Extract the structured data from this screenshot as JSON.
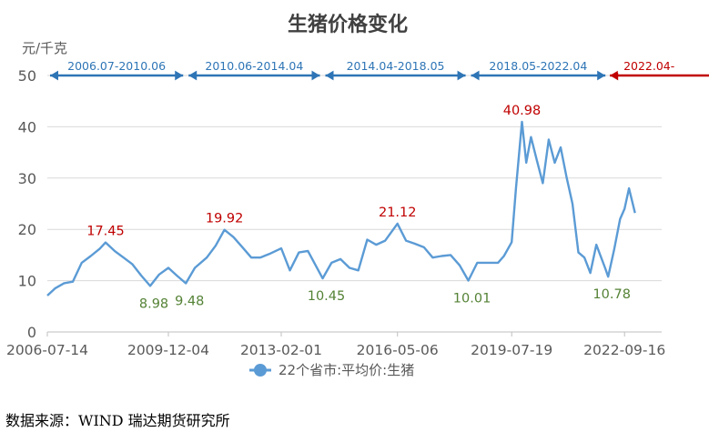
{
  "chart_data": {
    "type": "line",
    "title": "生猪价格变化",
    "ylabel": "元/千克",
    "ylim": [
      0,
      50
    ],
    "yticks": [
      "0",
      "10",
      "20",
      "30",
      "40",
      "50"
    ],
    "xlim": [
      "2006-07-14",
      "2023-10-01"
    ],
    "xticks": [
      "2006-07-14",
      "2009-12-04",
      "2013-02-01",
      "2016-05-06",
      "2019-07-19",
      "2022-09-16"
    ],
    "grid": true,
    "legend_position": "bottom",
    "series": [
      {
        "name": "22个省市:平均价:生猪",
        "color": "#5b9bd5",
        "points": [
          [
            "2006-07-14",
            7.1
          ],
          [
            "2006-10-01",
            8.5
          ],
          [
            "2007-01-01",
            9.5
          ],
          [
            "2007-04-01",
            9.8
          ],
          [
            "2007-07-01",
            13.5
          ],
          [
            "2007-10-01",
            14.8
          ],
          [
            "2008-01-01",
            16.2
          ],
          [
            "2008-03-01",
            17.45
          ],
          [
            "2008-06-01",
            15.8
          ],
          [
            "2008-09-01",
            14.5
          ],
          [
            "2008-12-01",
            13.2
          ],
          [
            "2009-03-01",
            11.0
          ],
          [
            "2009-06-01",
            8.98
          ],
          [
            "2009-09-01",
            11.2
          ],
          [
            "2009-12-04",
            12.5
          ],
          [
            "2010-03-01",
            11.0
          ],
          [
            "2010-06-01",
            9.48
          ],
          [
            "2010-09-01",
            12.5
          ],
          [
            "2011-01-01",
            14.5
          ],
          [
            "2011-04-01",
            16.8
          ],
          [
            "2011-07-01",
            19.92
          ],
          [
            "2011-10-01",
            18.5
          ],
          [
            "2012-01-01",
            16.5
          ],
          [
            "2012-04-01",
            14.5
          ],
          [
            "2012-07-01",
            14.5
          ],
          [
            "2012-10-01",
            15.2
          ],
          [
            "2013-02-01",
            16.3
          ],
          [
            "2013-05-01",
            12.0
          ],
          [
            "2013-08-01",
            15.5
          ],
          [
            "2013-11-01",
            15.8
          ],
          [
            "2014-04-01",
            10.45
          ],
          [
            "2014-07-01",
            13.5
          ],
          [
            "2014-10-01",
            14.2
          ],
          [
            "2015-01-01",
            12.5
          ],
          [
            "2015-04-01",
            12.0
          ],
          [
            "2015-07-01",
            18.0
          ],
          [
            "2015-10-01",
            17.0
          ],
          [
            "2016-01-01",
            17.8
          ],
          [
            "2016-05-06",
            21.12
          ],
          [
            "2016-08-01",
            17.8
          ],
          [
            "2016-11-01",
            17.2
          ],
          [
            "2017-02-01",
            16.5
          ],
          [
            "2017-05-01",
            14.5
          ],
          [
            "2017-08-01",
            14.8
          ],
          [
            "2017-11-01",
            15.0
          ],
          [
            "2018-02-01",
            13.0
          ],
          [
            "2018-05-01",
            10.01
          ],
          [
            "2018-08-01",
            13.5
          ],
          [
            "2018-11-01",
            13.5
          ],
          [
            "2019-03-01",
            13.5
          ],
          [
            "2019-05-01",
            14.8
          ],
          [
            "2019-07-19",
            17.5
          ],
          [
            "2019-09-01",
            28.0
          ],
          [
            "2019-11-01",
            40.98
          ],
          [
            "2019-12-15",
            33.0
          ],
          [
            "2020-02-01",
            38.0
          ],
          [
            "2020-04-01",
            33.5
          ],
          [
            "2020-06-01",
            29.0
          ],
          [
            "2020-08-01",
            37.5
          ],
          [
            "2020-10-01",
            33.0
          ],
          [
            "2020-12-01",
            36.0
          ],
          [
            "2021-02-01",
            30.0
          ],
          [
            "2021-04-01",
            25.0
          ],
          [
            "2021-06-01",
            15.5
          ],
          [
            "2021-08-01",
            14.5
          ],
          [
            "2021-10-01",
            11.5
          ],
          [
            "2021-12-01",
            17.0
          ],
          [
            "2022-03-01",
            12.5
          ],
          [
            "2022-04-01",
            10.78
          ],
          [
            "2022-06-01",
            16.0
          ],
          [
            "2022-08-01",
            22.0
          ],
          [
            "2022-09-16",
            24.0
          ],
          [
            "2022-11-01",
            28.0
          ],
          [
            "2023-01-01",
            23.2
          ]
        ]
      }
    ],
    "annotations": {
      "peaks": [
        {
          "date": "2008-03-01",
          "value": 17.45,
          "label": "17.45"
        },
        {
          "date": "2011-07-01",
          "value": 19.92,
          "label": "19.92"
        },
        {
          "date": "2016-05-06",
          "value": 21.12,
          "label": "21.12"
        },
        {
          "date": "2019-11-01",
          "value": 40.98,
          "label": "40.98"
        }
      ],
      "troughs": [
        {
          "date": "2009-06-01",
          "value": 8.98,
          "label": "8.98"
        },
        {
          "date": "2010-06-01",
          "value": 9.48,
          "label": "9.48"
        },
        {
          "date": "2014-04-01",
          "value": 10.45,
          "label": "10.45"
        },
        {
          "date": "2018-05-01",
          "value": 10.01,
          "label": "10.01"
        },
        {
          "date": "2022-04-01",
          "value": 10.78,
          "label": "10.78"
        }
      ],
      "peak_color": "#c00000",
      "trough_color": "#548235",
      "cycles": [
        {
          "start": "2006-07-14",
          "end": "2010-06-01",
          "label": "2006.07-2010.06",
          "color": "#2e75b6"
        },
        {
          "start": "2010-06-01",
          "end": "2014-04-01",
          "label": "2010.06-2014.04",
          "color": "#2e75b6"
        },
        {
          "start": "2014-04-01",
          "end": "2018-05-01",
          "label": "2014.04-2018.05",
          "color": "#2e75b6"
        },
        {
          "start": "2018-05-01",
          "end": "2022-04-01",
          "label": "2018.05-2022.04",
          "color": "#2e75b6"
        },
        {
          "start": "2022-04-01",
          "end": "2023-10-01",
          "label": "2022.04-",
          "color": "#c00000"
        }
      ]
    }
  },
  "footer": {
    "source_text": "数据来源：WIND 瑞达期货研究所"
  }
}
